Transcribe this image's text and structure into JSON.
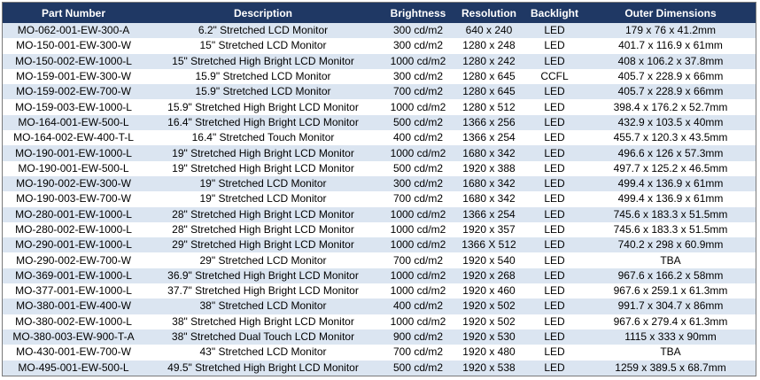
{
  "columns": [
    "Part Number",
    "Description",
    "Brightness",
    "Resolution",
    "Backlight",
    "Outer Dimensions"
  ],
  "rows": [
    [
      "MO-062-001-EW-300-A",
      "6.2\" Stretched LCD Monitor",
      "300 cd/m2",
      "640 x 240",
      "LED",
      "179 x 76 x 41.2mm"
    ],
    [
      "MO-150-001-EW-300-W",
      "15\" Stretched LCD Monitor",
      "300 cd/m2",
      "1280 x 248",
      "LED",
      "401.7 x 116.9 x 61mm"
    ],
    [
      "MO-150-002-EW-1000-L",
      "15\" Stretched High Bright  LCD Monitor",
      "1000 cd/m2",
      "1280 x 242",
      "LED",
      "408 x 106.2 x 37.8mm"
    ],
    [
      "MO-159-001-EW-300-W",
      "15.9\" Stretched LCD Monitor",
      "300 cd/m2",
      "1280 x 645",
      "CCFL",
      "405.7 x 228.9 x 66mm"
    ],
    [
      "MO-159-002-EW-700-W",
      "15.9\" Stretched LCD Monitor",
      "700 cd/m2",
      "1280 x 645",
      "LED",
      "405.7 x 228.9 x 66mm"
    ],
    [
      "MO-159-003-EW-1000-L",
      "15.9\" Stretched High Bright  LCD Monitor",
      "1000 cd/m2",
      "1280 x 512",
      "LED",
      "398.4 x 176.2 x 52.7mm"
    ],
    [
      "MO-164-001-EW-500-L",
      "16.4\" Stretched High Bright  LCD Monitor",
      "500 cd/m2",
      "1366 x 256",
      "LED",
      "432.9 x 103.5 x 40mm"
    ],
    [
      "MO-164-002-EW-400-T-L",
      "16.4\" Stretched Touch Monitor",
      "400 cd/m2",
      "1366 x 254",
      "LED",
      "455.7 x 120.3 x 43.5mm"
    ],
    [
      "MO-190-001-EW-1000-L",
      "19\" Stretched High Bright  LCD Monitor",
      "1000 cd/m2",
      "1680 x 342",
      "LED",
      "496.6 x 126 x 57.3mm"
    ],
    [
      "MO-190-001-EW-500-L",
      "19\" Stretched High Bright  LCD Monitor",
      "500 cd/m2",
      "1920 x 388",
      "LED",
      "497.7 x 125.2 x 46.5mm"
    ],
    [
      "MO-190-002-EW-300-W",
      "19\" Stretched LCD Monitor",
      "300 cd/m2",
      "1680 x 342",
      "LED",
      "499.4 x 136.9 x 61mm"
    ],
    [
      "MO-190-003-EW-700-W",
      "19\" Stretched LCD Monitor",
      "700 cd/m2",
      "1680 x 342",
      "LED",
      "499.4 x 136.9 x 61mm"
    ],
    [
      "MO-280-001-EW-1000-L",
      "28\" Stretched High Bright  LCD Monitor",
      "1000 cd/m2",
      "1366 x 254",
      "LED",
      "745.6 x 183.3 x 51.5mm"
    ],
    [
      "MO-280-002-EW-1000-L",
      "28\" Stretched High Bright  LCD Monitor",
      "1000 cd/m2",
      "1920 x 357",
      "LED",
      "745.6 x 183.3 x 51.5mm"
    ],
    [
      "MO-290-001-EW-1000-L",
      "29\" Stretched High Bright  LCD Monitor",
      "1000 cd/m2",
      "1366 X 512",
      "LED",
      "740.2 x 298 x 60.9mm"
    ],
    [
      "MO-290-002-EW-700-W",
      "29\" Stretched LCD Monitor",
      "700 cd/m2",
      "1920 x 540",
      "LED",
      "TBA"
    ],
    [
      "MO-369-001-EW-1000-L",
      "36.9\" Stretched High Bright  LCD Monitor",
      "1000 cd/m2",
      "1920 x 268",
      "LED",
      "967.6 x 166.2 x 58mm"
    ],
    [
      "MO-377-001-EW-1000-L",
      "37.7\" Stretched High Bright  LCD Monitor",
      "1000 cd/m2",
      "1920 x 460",
      "LED",
      "967.6 x 259.1 x 61.3mm"
    ],
    [
      "MO-380-001-EW-400-W",
      "38\" Stretched LCD Monitor",
      "400 cd/m2",
      "1920 x 502",
      "LED",
      "991.7 x 304.7 x 86mm"
    ],
    [
      "MO-380-002-EW-1000-L",
      "38\" Stretched High Bright  LCD Monitor",
      "1000 cd/m2",
      "1920 x 502",
      "LED",
      "967.6 x 279.4 x 61.3mm"
    ],
    [
      "MO-380-003-EW-900-T-A",
      "38\" Stretched Dual Touch LCD Monitor",
      "900 cd/m2",
      "1920 x 530",
      "LED",
      "1115 x 333 x 90mm"
    ],
    [
      "MO-430-001-EW-700-W",
      "43\" Stretched LCD Monitor",
      "700 cd/m2",
      "1920 x 480",
      "LED",
      "TBA"
    ],
    [
      "MO-495-001-EW-500-L",
      "49.5\" Stretched High Bright  LCD Monitor",
      "500 cd/m2",
      "1920 x 538",
      "LED",
      "1259 x 389.5 x 68.7mm"
    ]
  ]
}
